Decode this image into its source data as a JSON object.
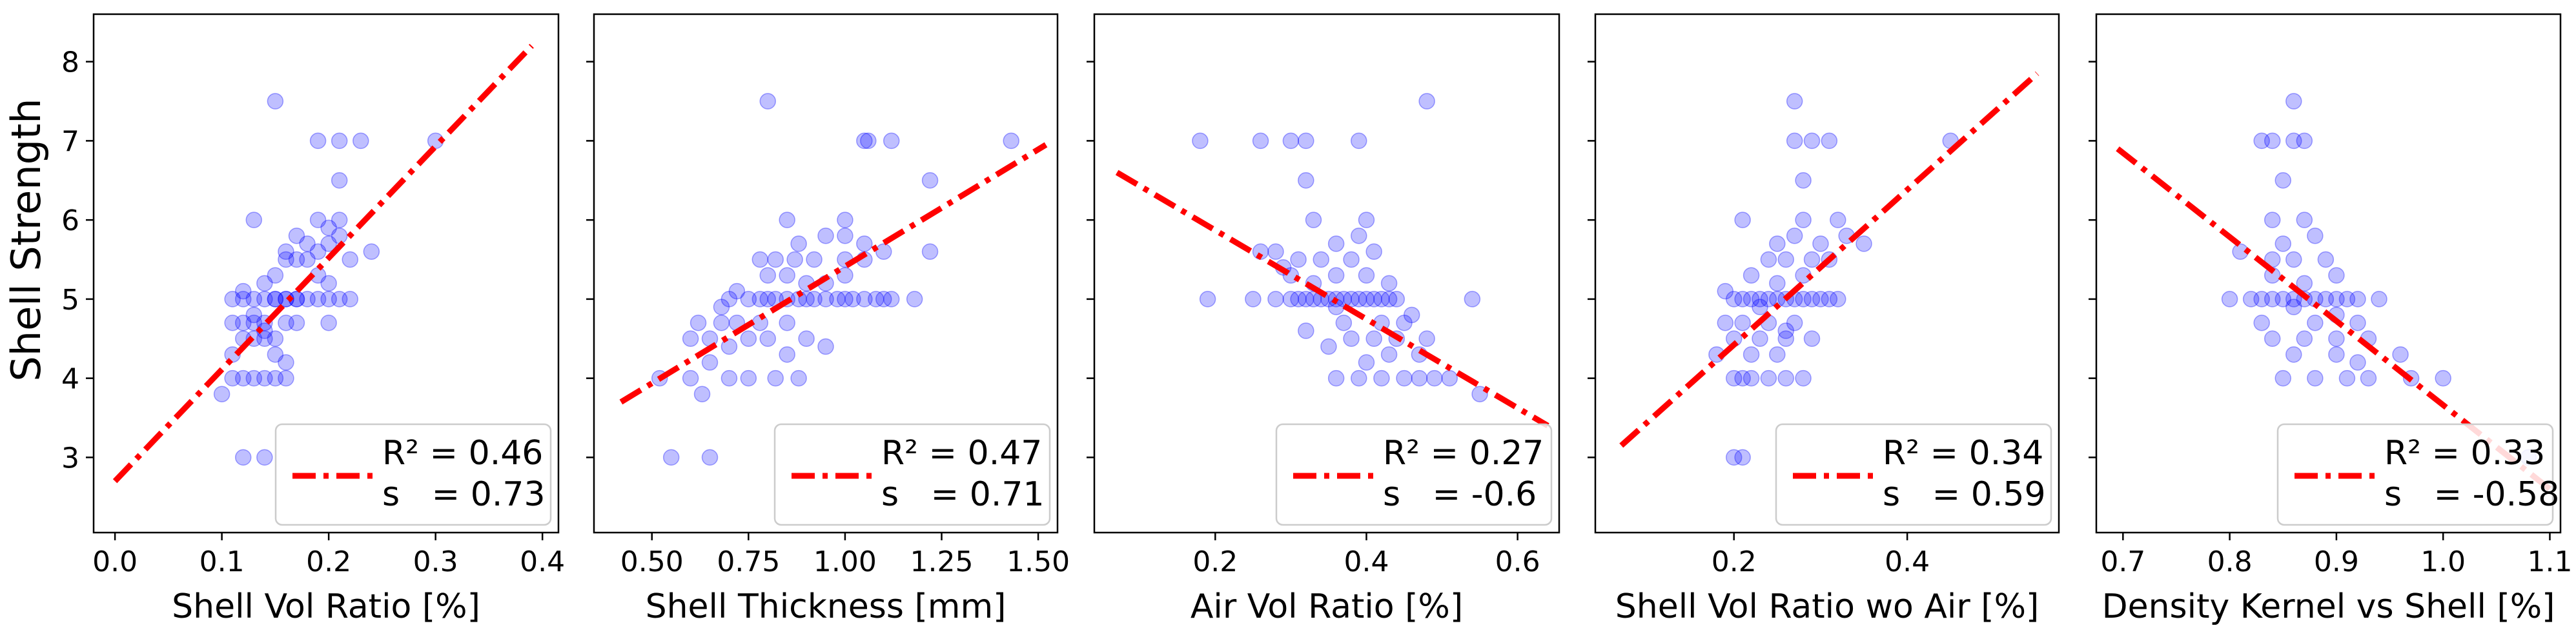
{
  "figure": {
    "ylabel": "Shell Strength",
    "shared_y": true,
    "ylim": [
      2.05,
      8.6
    ],
    "yticks": [
      3,
      4,
      5,
      6,
      7,
      8
    ],
    "point_color": "#0000ff",
    "line_color": "#ff0000"
  },
  "chart_data": [
    {
      "type": "scatter",
      "xlabel": "Shell Vol Ratio [%]",
      "xlim": [
        -0.02,
        0.415
      ],
      "xticks": [
        "0.0",
        "0.1",
        "0.2",
        "0.3",
        "0.4"
      ],
      "xtick_values": [
        0.0,
        0.1,
        0.2,
        0.3,
        0.4
      ],
      "legend": {
        "r2": "R² = 0.46",
        "s": "s   = 0.73",
        "position": "lower-right"
      },
      "fit_line": {
        "x": [
          0.0,
          0.39
        ],
        "y": [
          2.7,
          8.2
        ]
      },
      "points": [
        [
          0.14,
          3.0
        ],
        [
          0.12,
          3.0
        ],
        [
          0.1,
          3.8
        ],
        [
          0.11,
          4.0
        ],
        [
          0.12,
          4.0
        ],
        [
          0.13,
          4.0
        ],
        [
          0.14,
          4.0
        ],
        [
          0.15,
          4.0
        ],
        [
          0.16,
          4.0
        ],
        [
          0.11,
          4.3
        ],
        [
          0.12,
          4.5
        ],
        [
          0.13,
          4.5
        ],
        [
          0.14,
          4.5
        ],
        [
          0.15,
          4.5
        ],
        [
          0.15,
          4.3
        ],
        [
          0.11,
          4.7
        ],
        [
          0.12,
          4.7
        ],
        [
          0.13,
          4.7
        ],
        [
          0.14,
          4.7
        ],
        [
          0.16,
          4.7
        ],
        [
          0.17,
          4.7
        ],
        [
          0.11,
          5.0
        ],
        [
          0.12,
          5.0
        ],
        [
          0.13,
          5.0
        ],
        [
          0.14,
          5.0
        ],
        [
          0.15,
          5.0
        ],
        [
          0.16,
          5.0
        ],
        [
          0.17,
          5.0
        ],
        [
          0.18,
          5.0
        ],
        [
          0.19,
          5.0
        ],
        [
          0.2,
          5.0
        ],
        [
          0.21,
          5.0
        ],
        [
          0.22,
          5.0
        ],
        [
          0.15,
          5.0
        ],
        [
          0.16,
          5.0
        ],
        [
          0.17,
          5.0
        ],
        [
          0.14,
          5.2
        ],
        [
          0.15,
          5.3
        ],
        [
          0.16,
          5.5
        ],
        [
          0.17,
          5.5
        ],
        [
          0.18,
          5.5
        ],
        [
          0.19,
          5.3
        ],
        [
          0.2,
          5.2
        ],
        [
          0.16,
          5.6
        ],
        [
          0.18,
          5.7
        ],
        [
          0.19,
          5.6
        ],
        [
          0.2,
          5.7
        ],
        [
          0.21,
          5.8
        ],
        [
          0.17,
          5.8
        ],
        [
          0.13,
          6.0
        ],
        [
          0.19,
          6.0
        ],
        [
          0.2,
          5.9
        ],
        [
          0.21,
          6.0
        ],
        [
          0.24,
          5.6
        ],
        [
          0.22,
          5.5
        ],
        [
          0.2,
          4.7
        ],
        [
          0.21,
          6.5
        ],
        [
          0.19,
          7.0
        ],
        [
          0.21,
          7.0
        ],
        [
          0.23,
          7.0
        ],
        [
          0.3,
          7.0
        ],
        [
          0.15,
          7.5
        ],
        [
          0.13,
          4.8
        ],
        [
          0.12,
          5.1
        ],
        [
          0.16,
          4.2
        ],
        [
          0.14,
          4.6
        ]
      ]
    },
    {
      "type": "scatter",
      "xlabel": "Shell Thickness [mm]",
      "xlim": [
        0.35,
        1.55
      ],
      "xticks": [
        "0.50",
        "0.75",
        "1.00",
        "1.25",
        "1.50"
      ],
      "xtick_values": [
        0.5,
        0.75,
        1.0,
        1.25,
        1.5
      ],
      "legend": {
        "r2": "R² = 0.47",
        "s": "s   = 0.71",
        "position": "lower-right"
      },
      "fit_line": {
        "x": [
          0.42,
          1.52
        ],
        "y": [
          3.7,
          6.95
        ]
      },
      "points": [
        [
          0.55,
          3.0
        ],
        [
          0.65,
          3.0
        ],
        [
          0.52,
          4.0
        ],
        [
          0.6,
          4.0
        ],
        [
          0.63,
          3.8
        ],
        [
          0.65,
          4.2
        ],
        [
          0.7,
          4.0
        ],
        [
          0.75,
          4.0
        ],
        [
          0.82,
          4.0
        ],
        [
          0.88,
          4.0
        ],
        [
          0.6,
          4.5
        ],
        [
          0.65,
          4.5
        ],
        [
          0.7,
          4.4
        ],
        [
          0.75,
          4.5
        ],
        [
          0.8,
          4.5
        ],
        [
          0.85,
          4.3
        ],
        [
          0.9,
          4.5
        ],
        [
          0.95,
          4.4
        ],
        [
          0.62,
          4.7
        ],
        [
          0.68,
          4.7
        ],
        [
          0.72,
          4.7
        ],
        [
          0.78,
          4.7
        ],
        [
          0.85,
          4.7
        ],
        [
          0.7,
          5.0
        ],
        [
          0.75,
          5.0
        ],
        [
          0.78,
          5.0
        ],
        [
          0.8,
          5.0
        ],
        [
          0.82,
          5.0
        ],
        [
          0.85,
          5.0
        ],
        [
          0.88,
          5.0
        ],
        [
          0.9,
          5.0
        ],
        [
          0.92,
          5.0
        ],
        [
          0.95,
          5.0
        ],
        [
          0.98,
          5.0
        ],
        [
          1.0,
          5.0
        ],
        [
          1.02,
          5.0
        ],
        [
          1.05,
          5.0
        ],
        [
          1.08,
          5.0
        ],
        [
          1.1,
          5.0
        ],
        [
          1.12,
          5.0
        ],
        [
          0.8,
          5.3
        ],
        [
          0.85,
          5.3
        ],
        [
          0.9,
          5.2
        ],
        [
          0.95,
          5.2
        ],
        [
          1.0,
          5.3
        ],
        [
          0.78,
          5.5
        ],
        [
          0.82,
          5.5
        ],
        [
          0.87,
          5.5
        ],
        [
          0.92,
          5.5
        ],
        [
          1.0,
          5.5
        ],
        [
          1.05,
          5.5
        ],
        [
          0.88,
          5.7
        ],
        [
          1.05,
          5.7
        ],
        [
          0.95,
          5.8
        ],
        [
          1.0,
          5.8
        ],
        [
          1.1,
          5.6
        ],
        [
          0.85,
          6.0
        ],
        [
          1.0,
          6.0
        ],
        [
          1.22,
          5.6
        ],
        [
          1.22,
          6.5
        ],
        [
          1.05,
          7.0
        ],
        [
          1.06,
          7.0
        ],
        [
          1.12,
          7.0
        ],
        [
          1.43,
          7.0
        ],
        [
          0.8,
          7.5
        ],
        [
          0.72,
          5.1
        ],
        [
          0.68,
          4.9
        ],
        [
          1.18,
          5.0
        ]
      ]
    },
    {
      "type": "scatter",
      "xlabel": "Air Vol Ratio [%]",
      "xlim": [
        0.04,
        0.655
      ],
      "xticks": [
        "0.2",
        "0.4",
        "0.6"
      ],
      "xtick_values": [
        0.2,
        0.4,
        0.6
      ],
      "legend": {
        "r2": "R² = 0.27",
        "s": "s   = -0.6",
        "position": "lower-right"
      },
      "fit_line": {
        "x": [
          0.07,
          0.64
        ],
        "y": [
          6.6,
          3.4
        ]
      },
      "points": [
        [
          0.55,
          3.8
        ],
        [
          0.36,
          4.0
        ],
        [
          0.39,
          4.0
        ],
        [
          0.42,
          4.0
        ],
        [
          0.45,
          4.0
        ],
        [
          0.47,
          4.0
        ],
        [
          0.49,
          4.0
        ],
        [
          0.51,
          4.0
        ],
        [
          0.4,
          4.2
        ],
        [
          0.43,
          4.3
        ],
        [
          0.47,
          4.3
        ],
        [
          0.35,
          4.4
        ],
        [
          0.38,
          4.5
        ],
        [
          0.41,
          4.5
        ],
        [
          0.44,
          4.5
        ],
        [
          0.48,
          4.5
        ],
        [
          0.32,
          4.6
        ],
        [
          0.37,
          4.7
        ],
        [
          0.42,
          4.7
        ],
        [
          0.46,
          4.8
        ],
        [
          0.19,
          5.0
        ],
        [
          0.25,
          5.0
        ],
        [
          0.28,
          5.0
        ],
        [
          0.3,
          5.0
        ],
        [
          0.31,
          5.0
        ],
        [
          0.32,
          5.0
        ],
        [
          0.33,
          5.0
        ],
        [
          0.34,
          5.0
        ],
        [
          0.35,
          5.0
        ],
        [
          0.36,
          5.0
        ],
        [
          0.37,
          5.0
        ],
        [
          0.38,
          5.0
        ],
        [
          0.39,
          5.0
        ],
        [
          0.4,
          5.0
        ],
        [
          0.41,
          5.0
        ],
        [
          0.42,
          5.0
        ],
        [
          0.43,
          5.0
        ],
        [
          0.44,
          5.0
        ],
        [
          0.54,
          5.0
        ],
        [
          0.3,
          5.3
        ],
        [
          0.33,
          5.2
        ],
        [
          0.36,
          5.3
        ],
        [
          0.4,
          5.3
        ],
        [
          0.43,
          5.2
        ],
        [
          0.26,
          5.6
        ],
        [
          0.28,
          5.6
        ],
        [
          0.31,
          5.5
        ],
        [
          0.34,
          5.5
        ],
        [
          0.38,
          5.5
        ],
        [
          0.41,
          5.6
        ],
        [
          0.36,
          5.7
        ],
        [
          0.39,
          5.8
        ],
        [
          0.33,
          6.0
        ],
        [
          0.4,
          6.0
        ],
        [
          0.32,
          6.5
        ],
        [
          0.18,
          7.0
        ],
        [
          0.26,
          7.0
        ],
        [
          0.3,
          7.0
        ],
        [
          0.32,
          7.0
        ],
        [
          0.39,
          7.0
        ],
        [
          0.48,
          7.5
        ],
        [
          0.36,
          4.9
        ],
        [
          0.45,
          4.7
        ],
        [
          0.29,
          5.4
        ]
      ]
    },
    {
      "type": "scatter",
      "xlabel": "Shell Vol Ratio wo Air [%]",
      "xlim": [
        0.04,
        0.575
      ],
      "xticks": [
        "0.2",
        "0.4"
      ],
      "xtick_values": [
        0.2,
        0.4
      ],
      "legend": {
        "r2": "R² = 0.34",
        "s": "s   = 0.59",
        "position": "lower-right"
      },
      "fit_line": {
        "x": [
          0.07,
          0.55
        ],
        "y": [
          3.15,
          7.85
        ]
      },
      "points": [
        [
          0.2,
          3.0
        ],
        [
          0.21,
          3.0
        ],
        [
          0.2,
          4.0
        ],
        [
          0.21,
          4.0
        ],
        [
          0.22,
          4.0
        ],
        [
          0.24,
          4.0
        ],
        [
          0.26,
          4.0
        ],
        [
          0.28,
          4.0
        ],
        [
          0.18,
          4.3
        ],
        [
          0.22,
          4.3
        ],
        [
          0.25,
          4.3
        ],
        [
          0.2,
          4.5
        ],
        [
          0.23,
          4.5
        ],
        [
          0.26,
          4.5
        ],
        [
          0.29,
          4.5
        ],
        [
          0.19,
          4.7
        ],
        [
          0.21,
          4.7
        ],
        [
          0.24,
          4.7
        ],
        [
          0.27,
          4.7
        ],
        [
          0.2,
          5.0
        ],
        [
          0.21,
          5.0
        ],
        [
          0.22,
          5.0
        ],
        [
          0.23,
          5.0
        ],
        [
          0.24,
          5.0
        ],
        [
          0.25,
          5.0
        ],
        [
          0.26,
          5.0
        ],
        [
          0.27,
          5.0
        ],
        [
          0.28,
          5.0
        ],
        [
          0.29,
          5.0
        ],
        [
          0.3,
          5.0
        ],
        [
          0.31,
          5.0
        ],
        [
          0.32,
          5.0
        ],
        [
          0.22,
          5.3
        ],
        [
          0.25,
          5.2
        ],
        [
          0.28,
          5.3
        ],
        [
          0.24,
          5.5
        ],
        [
          0.26,
          5.5
        ],
        [
          0.29,
          5.5
        ],
        [
          0.31,
          5.5
        ],
        [
          0.25,
          5.7
        ],
        [
          0.27,
          5.8
        ],
        [
          0.3,
          5.7
        ],
        [
          0.21,
          6.0
        ],
        [
          0.28,
          6.0
        ],
        [
          0.33,
          5.8
        ],
        [
          0.32,
          6.0
        ],
        [
          0.35,
          5.7
        ],
        [
          0.28,
          6.5
        ],
        [
          0.27,
          7.0
        ],
        [
          0.29,
          7.0
        ],
        [
          0.31,
          7.0
        ],
        [
          0.45,
          7.0
        ],
        [
          0.27,
          7.5
        ],
        [
          0.23,
          4.9
        ],
        [
          0.26,
          4.6
        ],
        [
          0.19,
          5.1
        ]
      ]
    },
    {
      "type": "scatter",
      "xlabel": "Density Kernel vs Shell [%]",
      "xlim": [
        0.675,
        1.11
      ],
      "xticks": [
        "0.7",
        "0.8",
        "0.9",
        "1.0",
        "1.1"
      ],
      "xtick_values": [
        0.7,
        0.8,
        0.9,
        1.0,
        1.1
      ],
      "legend": {
        "r2": "R² = 0.33",
        "s": "s   = -0.58",
        "position": "lower-right"
      },
      "fit_line": {
        "x": [
          0.695,
          1.1
        ],
        "y": [
          6.9,
          2.6
        ]
      },
      "points": [
        [
          1.08,
          3.0
        ],
        [
          0.85,
          4.0
        ],
        [
          0.88,
          4.0
        ],
        [
          0.91,
          4.0
        ],
        [
          0.93,
          4.0
        ],
        [
          0.97,
          4.0
        ],
        [
          1.0,
          4.0
        ],
        [
          0.86,
          4.3
        ],
        [
          0.9,
          4.3
        ],
        [
          0.96,
          4.3
        ],
        [
          0.84,
          4.5
        ],
        [
          0.87,
          4.5
        ],
        [
          0.9,
          4.5
        ],
        [
          0.93,
          4.5
        ],
        [
          0.83,
          4.7
        ],
        [
          0.88,
          4.7
        ],
        [
          0.92,
          4.7
        ],
        [
          0.8,
          5.0
        ],
        [
          0.82,
          5.0
        ],
        [
          0.83,
          5.0
        ],
        [
          0.84,
          5.0
        ],
        [
          0.85,
          5.0
        ],
        [
          0.86,
          5.0
        ],
        [
          0.87,
          5.0
        ],
        [
          0.88,
          5.0
        ],
        [
          0.89,
          5.0
        ],
        [
          0.9,
          5.0
        ],
        [
          0.91,
          5.0
        ],
        [
          0.92,
          5.0
        ],
        [
          0.94,
          5.0
        ],
        [
          0.84,
          5.3
        ],
        [
          0.87,
          5.2
        ],
        [
          0.9,
          5.3
        ],
        [
          0.81,
          5.6
        ],
        [
          0.84,
          5.5
        ],
        [
          0.86,
          5.5
        ],
        [
          0.89,
          5.5
        ],
        [
          0.85,
          5.7
        ],
        [
          0.88,
          5.8
        ],
        [
          0.84,
          6.0
        ],
        [
          0.87,
          6.0
        ],
        [
          0.85,
          6.5
        ],
        [
          0.83,
          7.0
        ],
        [
          0.84,
          7.0
        ],
        [
          0.86,
          7.0
        ],
        [
          0.87,
          7.0
        ],
        [
          0.86,
          7.5
        ],
        [
          0.9,
          4.8
        ],
        [
          0.86,
          4.9
        ],
        [
          0.92,
          4.2
        ]
      ]
    }
  ]
}
